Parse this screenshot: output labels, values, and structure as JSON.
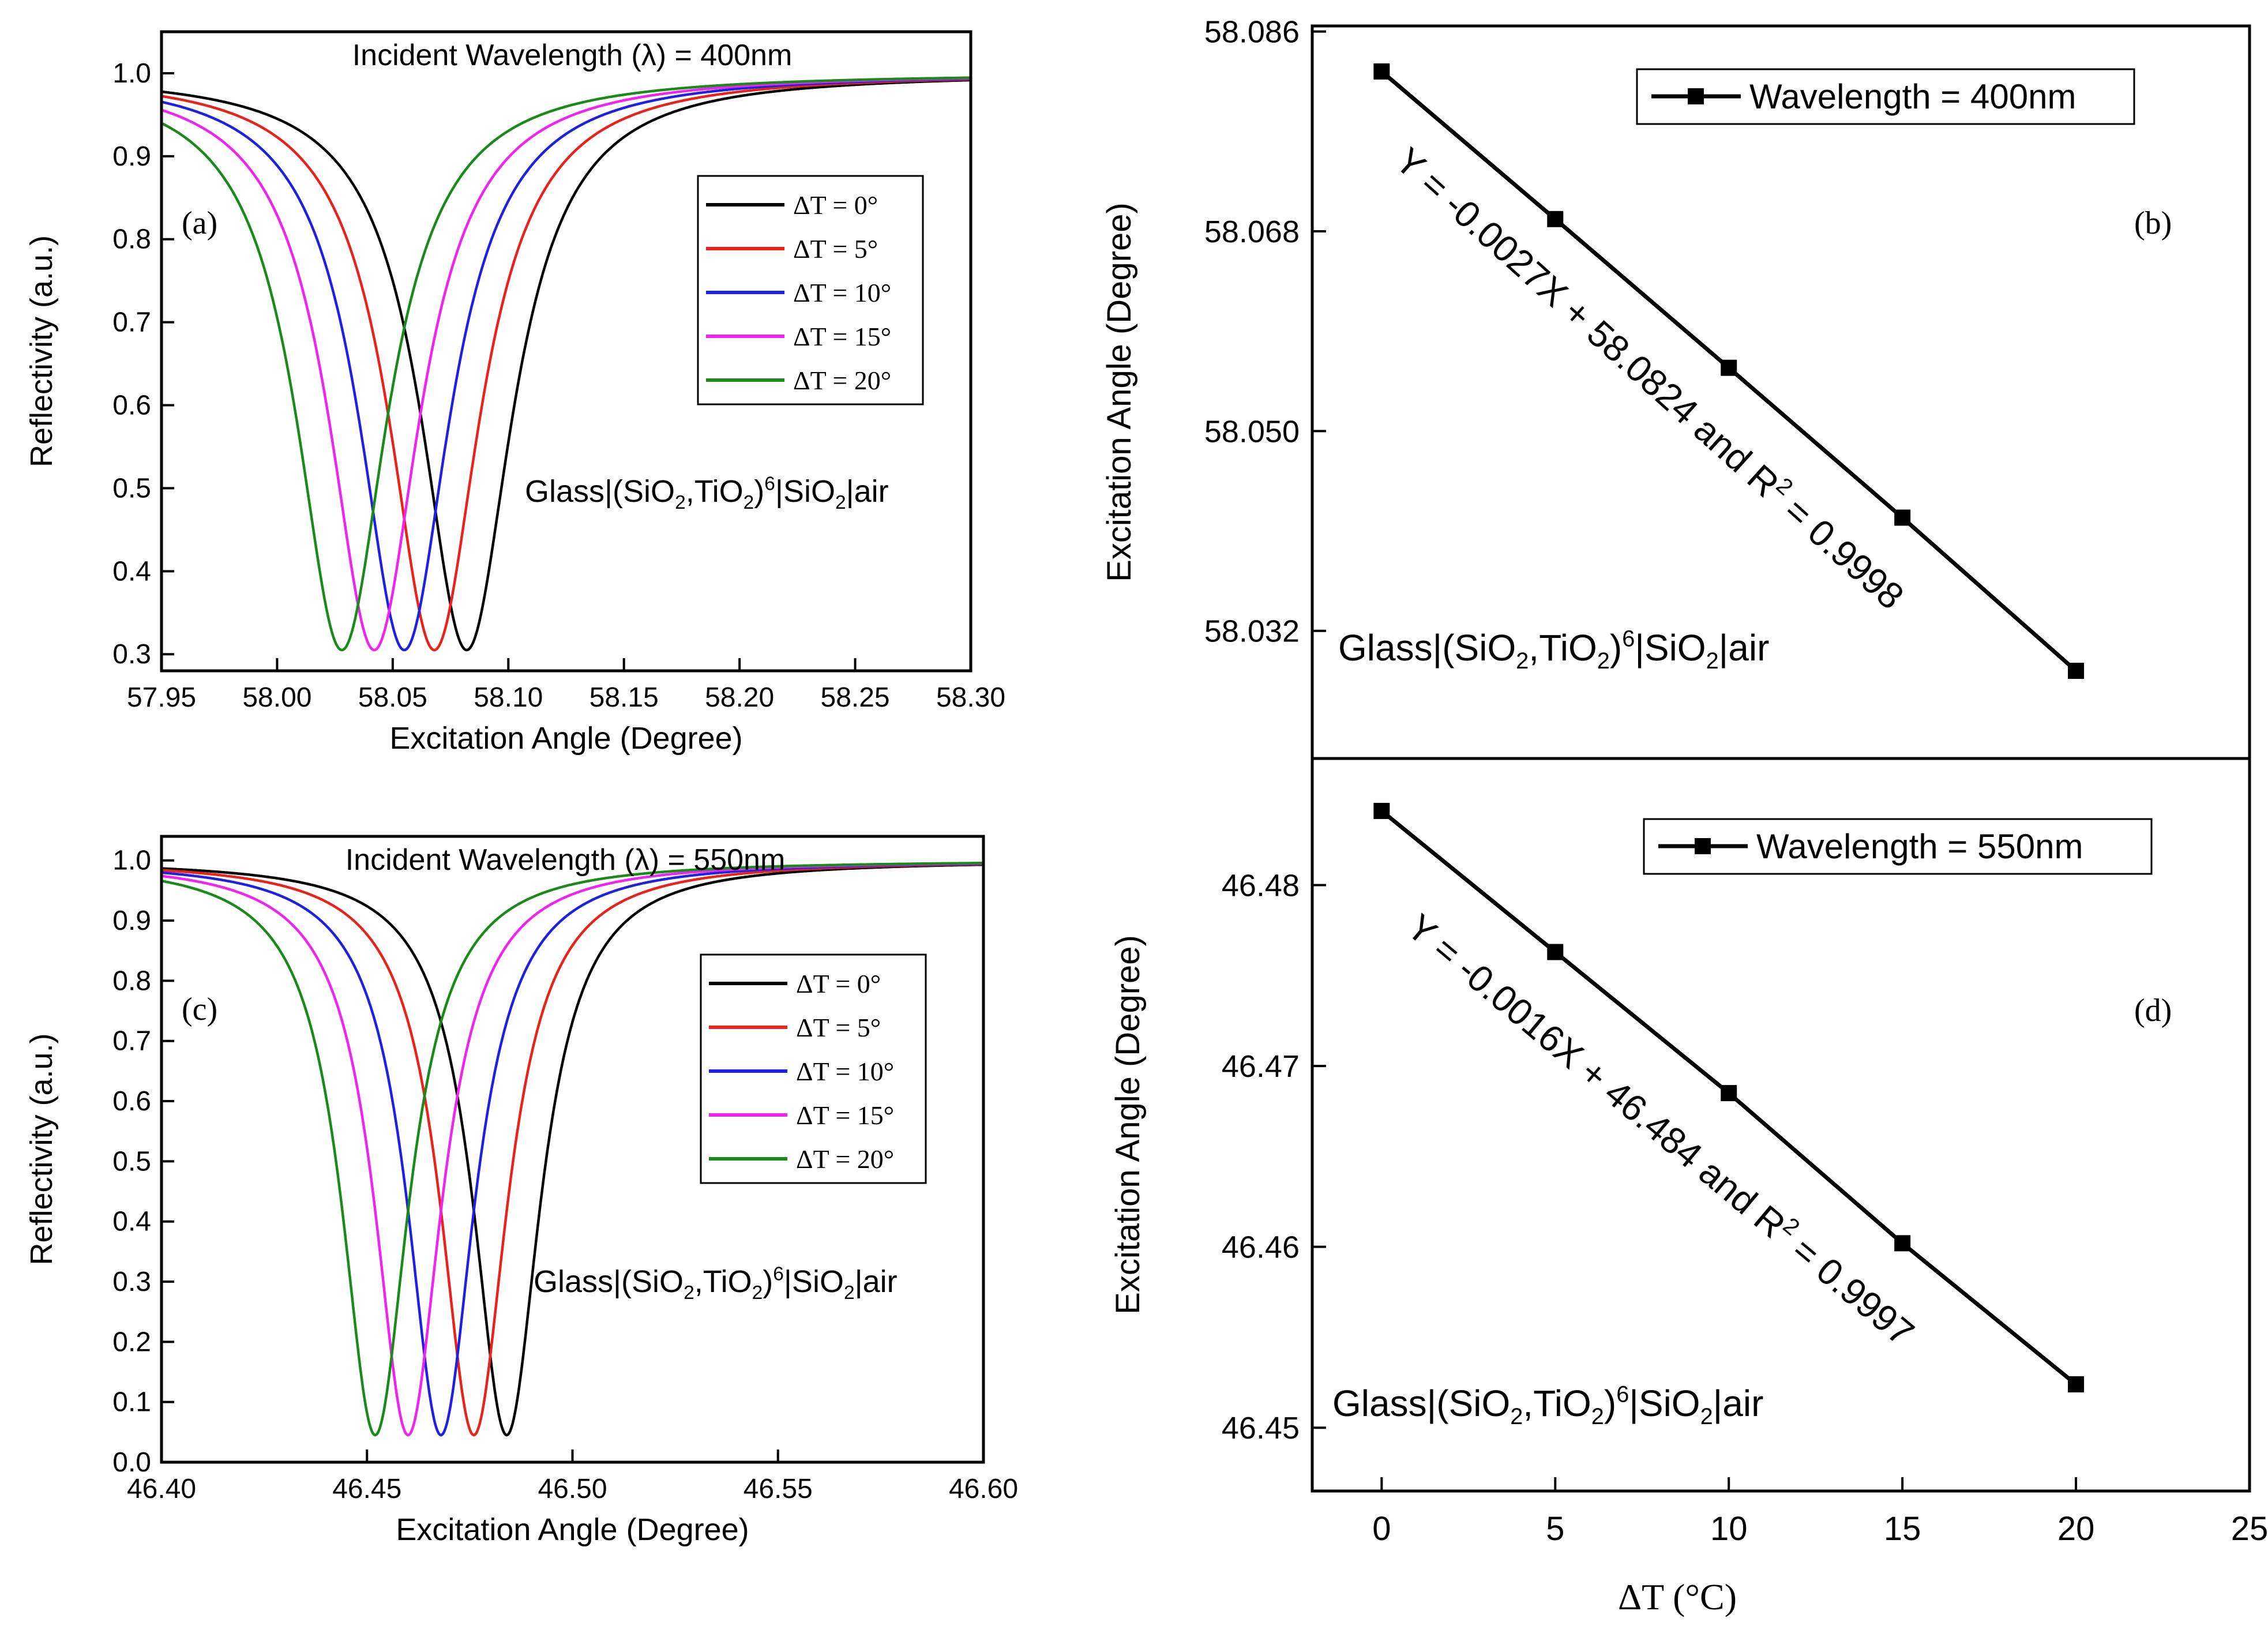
{
  "colors": {
    "axis": "#000000",
    "series": [
      "#000000",
      "#e8231c",
      "#1e22e0",
      "#f024f0",
      "#1a8a1a"
    ],
    "trend_line": "#000000"
  },
  "chart_data": [
    {
      "id": "a",
      "type": "line",
      "panel_label": "(a)",
      "title": "Incident Wavelength (λ) = 400nm",
      "xlabel": "Excitation Angle (Degree)",
      "ylabel": "Reflectivity (a.u.)",
      "xlim": [
        57.95,
        58.3
      ],
      "ylim": [
        0.28,
        1.05
      ],
      "xticks": [
        57.95,
        58.0,
        58.05,
        58.1,
        58.15,
        58.2,
        58.25,
        58.3
      ],
      "xtick_labels": [
        "57.95",
        "58.00",
        "58.05",
        "58.10",
        "58.15",
        "58.20",
        "58.25",
        "58.30"
      ],
      "yticks": [
        0.3,
        0.4,
        0.5,
        0.6,
        0.7,
        0.8,
        0.9,
        1.0
      ],
      "ytick_labels": [
        "0.3",
        "0.4",
        "0.5",
        "0.6",
        "0.7",
        "0.8",
        "0.9",
        "1.0"
      ],
      "annotation": {
        "base": "Glass|(SiO",
        "s1": "2",
        "m1": ",TiO",
        "s2": "2",
        "m2": ")",
        "sup": "6",
        "m3": "|SiO",
        "s3": "2",
        "end": "|air"
      },
      "legend_placement": "center-right",
      "series": [
        {
          "name": "ΔT = 0°",
          "min_x": 58.082,
          "min_y": 0.305,
          "width": 0.024
        },
        {
          "name": "ΔT = 5°",
          "min_x": 58.068,
          "min_y": 0.305,
          "width": 0.024
        },
        {
          "name": "ΔT = 10°",
          "min_x": 58.055,
          "min_y": 0.305,
          "width": 0.024
        },
        {
          "name": "ΔT = 15°",
          "min_x": 58.042,
          "min_y": 0.305,
          "width": 0.024
        },
        {
          "name": "ΔT = 20°",
          "min_x": 58.028,
          "min_y": 0.305,
          "width": 0.024
        }
      ]
    },
    {
      "id": "b",
      "type": "line",
      "panel_label": "(b)",
      "xlabel": "",
      "ylabel": "Excitation Angle (Degree)",
      "xlim": [
        -2,
        25
      ],
      "ylim": [
        58.0205,
        58.0865
      ],
      "yticks": [
        58.032,
        58.05,
        58.068,
        58.086
      ],
      "ytick_labels": [
        "58.032",
        "58.050",
        "58.068",
        "58.086"
      ],
      "legend": "Wavelength = 400nm",
      "equation": {
        "main": "Y = -0.0027X + 58.0824  and R",
        "sup": "2",
        "end": " = 0.9998"
      },
      "annotation": {
        "base": "Glass|(SiO",
        "s1": "2",
        "m1": ",TiO",
        "s2": "2",
        "m2": ")",
        "sup": "6",
        "m3": "|SiO",
        "s3": "2",
        "end": "|air"
      },
      "x": [
        0,
        5,
        10,
        15,
        20
      ],
      "y": [
        58.0824,
        58.0691,
        58.0557,
        58.0422,
        58.0284
      ]
    },
    {
      "id": "c",
      "type": "line",
      "panel_label": "(c)",
      "title": "Incident Wavelength (λ) = 550nm",
      "xlabel": "Excitation Angle (Degree)",
      "ylabel": "Reflectivity (a.u.)",
      "xlim": [
        46.4,
        46.6
      ],
      "ylim": [
        0.0,
        1.04
      ],
      "xticks": [
        46.4,
        46.45,
        46.5,
        46.55,
        46.6
      ],
      "xtick_labels": [
        "46.40",
        "46.45",
        "46.50",
        "46.55",
        "46.60"
      ],
      "yticks": [
        0.0,
        0.1,
        0.2,
        0.3,
        0.4,
        0.5,
        0.6,
        0.7,
        0.8,
        0.9,
        1.0
      ],
      "ytick_labels": [
        "0.0",
        "0.1",
        "0.2",
        "0.3",
        "0.4",
        "0.5",
        "0.6",
        "0.7",
        "0.8",
        "0.9",
        "1.0"
      ],
      "annotation": {
        "base": "Glass|(SiO",
        "s1": "2",
        "m1": ",TiO",
        "s2": "2",
        "m2": ")",
        "sup": "6",
        "m3": "|SiO",
        "s3": "2",
        "end": "|air"
      },
      "legend_placement": "center-right",
      "series": [
        {
          "name": "ΔT = 0°",
          "min_x": 46.484,
          "min_y": 0.045,
          "width": 0.01
        },
        {
          "name": "ΔT = 5°",
          "min_x": 46.476,
          "min_y": 0.045,
          "width": 0.01
        },
        {
          "name": "ΔT = 10°",
          "min_x": 46.468,
          "min_y": 0.045,
          "width": 0.01
        },
        {
          "name": "ΔT = 15°",
          "min_x": 46.46,
          "min_y": 0.045,
          "width": 0.01
        },
        {
          "name": "ΔT = 20°",
          "min_x": 46.452,
          "min_y": 0.045,
          "width": 0.01
        }
      ]
    },
    {
      "id": "d",
      "type": "line",
      "panel_label": "(d)",
      "xlabel": "ΔT (°C)",
      "ylabel": "Excitation Angle (Degree)",
      "xlim": [
        -2,
        25
      ],
      "ylim": [
        46.4465,
        46.487
      ],
      "xticks": [
        0,
        5,
        10,
        15,
        20,
        25
      ],
      "xtick_labels": [
        "0",
        "5",
        "10",
        "15",
        "20",
        "25"
      ],
      "yticks": [
        46.45,
        46.46,
        46.47,
        46.48
      ],
      "ytick_labels": [
        "46.45",
        "46.46",
        "46.47",
        "46.48"
      ],
      "legend": "Wavelength = 550nm",
      "equation": {
        "main": "Y = -0.0016X + 46.484  and R",
        "sup": "2",
        "end": " = 0.9997"
      },
      "annotation": {
        "base": "Glass|(SiO",
        "s1": "2",
        "m1": ",TiO",
        "s2": "2",
        "m2": ")",
        "sup": "6",
        "m3": "|SiO",
        "s3": "2",
        "end": "|air"
      },
      "x": [
        0,
        5,
        10,
        15,
        20
      ],
      "y": [
        46.4841,
        46.4763,
        46.4685,
        46.4602,
        46.4524
      ]
    }
  ]
}
